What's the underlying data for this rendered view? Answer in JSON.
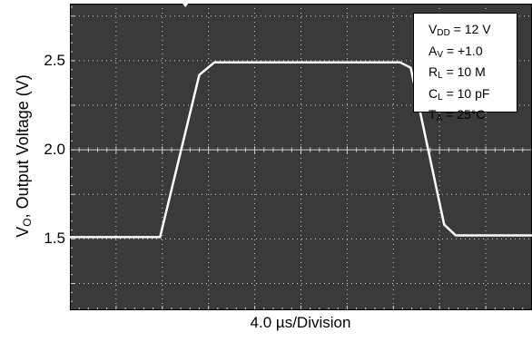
{
  "chart_data": {
    "type": "line",
    "xlabel": "4.0 µs/Division",
    "ylabel": {
      "main": "V",
      "sub": "O",
      "rest": ", Output Voltage (V)"
    },
    "yticks": [
      {
        "value": 1.5,
        "label": "1.5"
      },
      {
        "value": 2.0,
        "label": "2.0"
      },
      {
        "value": 2.5,
        "label": "2.5"
      }
    ],
    "ylim": [
      1.1,
      2.82
    ],
    "xlim": [
      0,
      40
    ],
    "grid": true,
    "series": [
      {
        "x": [
          0,
          7.8,
          11.2,
          12.5,
          28.6,
          29.5,
          32.4,
          33.4,
          40
        ],
        "y": [
          1.51,
          1.51,
          2.42,
          2.49,
          2.49,
          2.46,
          1.58,
          1.52,
          1.52
        ]
      }
    ],
    "annotations": [
      {
        "main": "V",
        "sub": "DD",
        "rest": " = 12 V"
      },
      {
        "main": "A",
        "sub": "V",
        "rest": " = +1.0"
      },
      {
        "main": "R",
        "sub": "L",
        "rest": " = 10 M"
      },
      {
        "main": "C",
        "sub": "L",
        "rest": " = 10 pF"
      },
      {
        "main": "T",
        "sub": "A",
        "rest": " = 25°C"
      }
    ],
    "colors": {
      "background": "#3a3a3a",
      "trace": "#ffffff",
      "grid": "#d0d0d0"
    }
  }
}
